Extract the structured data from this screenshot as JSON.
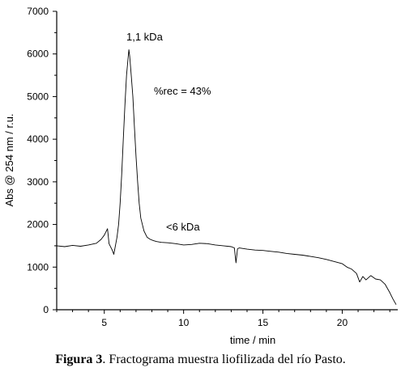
{
  "chart_data": {
    "type": "line",
    "xlabel": "time / min",
    "ylabel": "Abs @ 254 nm / r.u.",
    "xlim": [
      2,
      23.5
    ],
    "ylim": [
      0,
      7000
    ],
    "xticks": [
      5,
      10,
      15,
      20
    ],
    "yticks": [
      0,
      1000,
      2000,
      3000,
      4000,
      5000,
      6000,
      7000
    ],
    "grid": false,
    "series": [
      {
        "x": [
          2,
          2.5,
          3,
          3.5,
          4,
          4.5,
          4.8,
          5.0,
          5.2,
          5.3,
          5.5,
          5.6,
          5.8,
          5.9,
          6.0,
          6.1,
          6.2,
          6.3,
          6.4,
          6.5,
          6.55,
          6.6,
          6.7,
          6.8,
          6.9,
          7.0,
          7.1,
          7.2,
          7.3,
          7.5,
          7.7,
          7.9,
          8.1,
          8.3,
          8.6,
          9,
          9.5,
          10,
          10.5,
          11,
          11.5,
          12,
          12.5,
          13,
          13.2,
          13.3,
          13.4,
          13.5,
          14,
          14.5,
          15,
          15.5,
          16,
          16.5,
          17,
          17.5,
          18,
          18.5,
          19,
          19.5,
          20,
          20.3,
          20.6,
          20.9,
          21.1,
          21.3,
          21.5,
          21.8,
          22.1,
          22.4,
          22.7,
          23.0,
          23.2,
          23.4
        ],
        "y": [
          1500,
          1480,
          1510,
          1490,
          1520,
          1560,
          1650,
          1750,
          1900,
          1550,
          1400,
          1300,
          1700,
          2000,
          2500,
          3200,
          4000,
          4800,
          5500,
          5900,
          6100,
          5950,
          5500,
          5000,
          4300,
          3600,
          3000,
          2500,
          2150,
          1850,
          1700,
          1650,
          1620,
          1600,
          1580,
          1570,
          1550,
          1520,
          1530,
          1560,
          1550,
          1520,
          1500,
          1480,
          1450,
          1100,
          1430,
          1450,
          1420,
          1400,
          1390,
          1370,
          1350,
          1320,
          1300,
          1280,
          1250,
          1220,
          1180,
          1130,
          1080,
          1000,
          950,
          850,
          650,
          780,
          700,
          800,
          720,
          700,
          600,
          400,
          250,
          120
        ]
      }
    ],
    "annotations": {
      "peak": "1,1 kDa",
      "recovery": "%rec = 43%",
      "shoulder": "<6 kDa"
    }
  },
  "caption": {
    "lead": "Figura 3",
    "text": ". Fractograma muestra liofilizada del río Pasto."
  }
}
